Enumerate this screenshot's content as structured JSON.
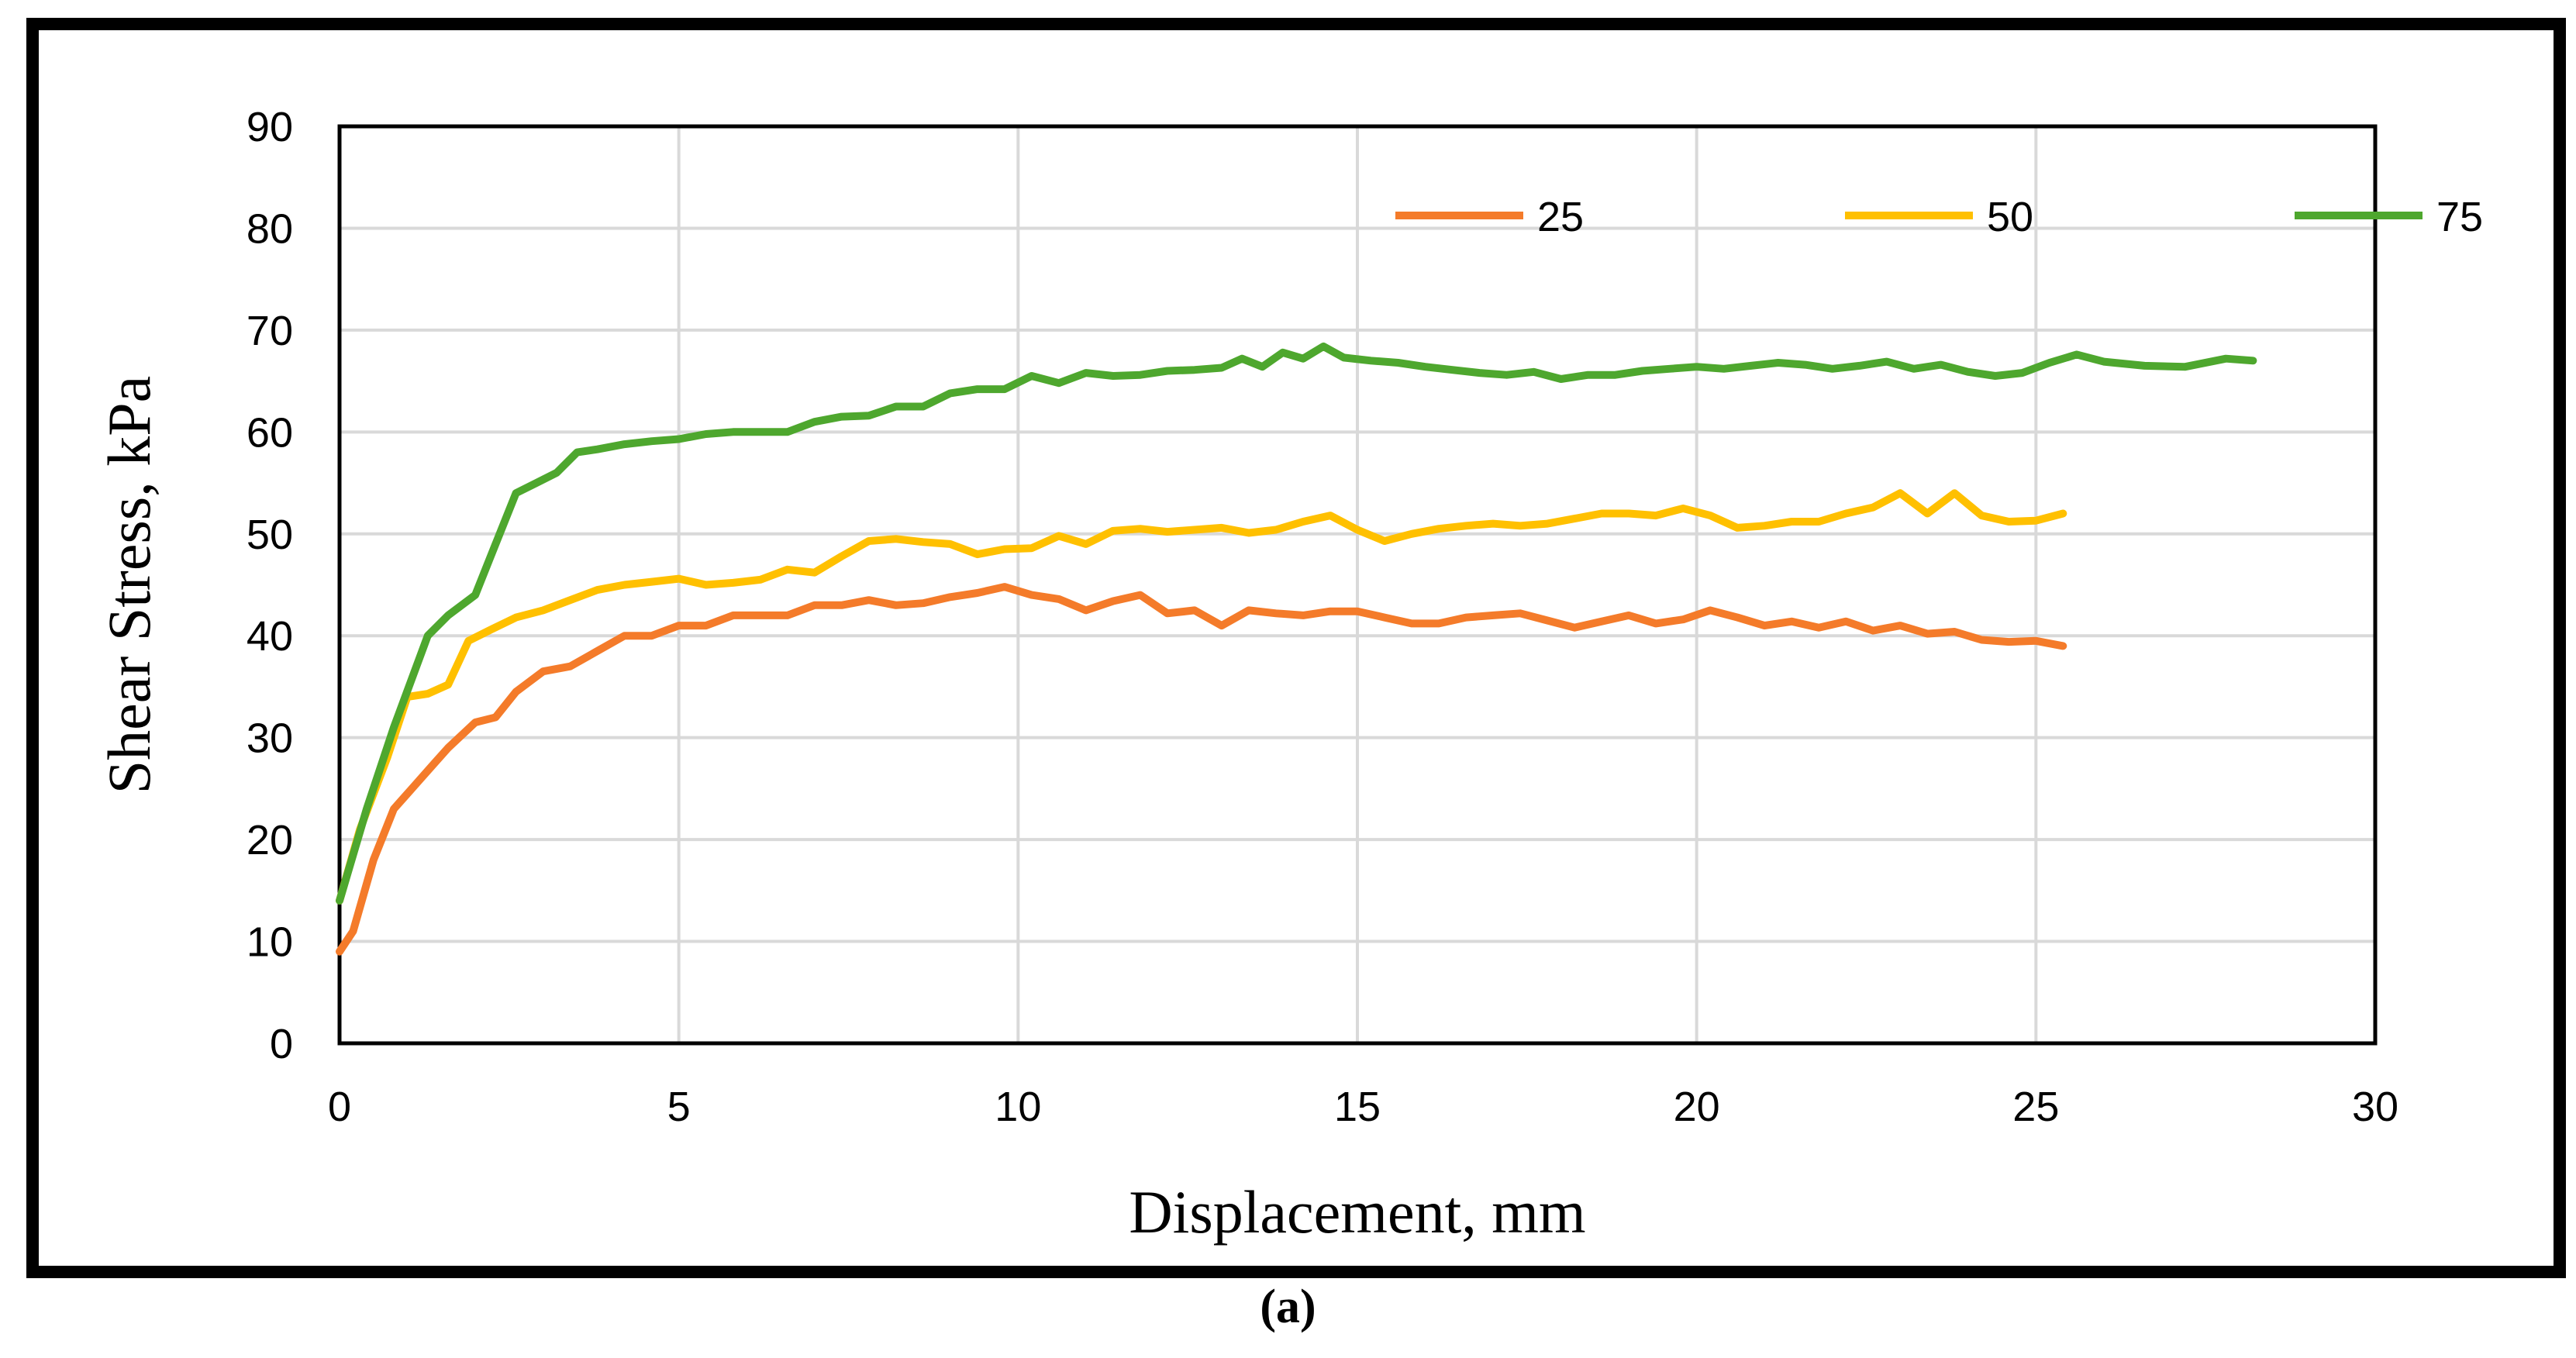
{
  "chart_data": {
    "type": "line",
    "xlabel": "Displacement, mm",
    "ylabel": "Shear Stress, kPa",
    "xlim": [
      0,
      30
    ],
    "ylim": [
      0,
      90
    ],
    "xticks": [
      0,
      5,
      10,
      15,
      20,
      25,
      30
    ],
    "yticks": [
      0,
      10,
      20,
      30,
      40,
      50,
      60,
      70,
      80,
      90
    ],
    "grid": true,
    "legend_position": "top-right",
    "series": [
      {
        "name": "25",
        "color": "#F47B2A",
        "x": [
          0,
          0.2,
          0.5,
          0.8,
          1.0,
          1.4,
          1.6,
          2.0,
          2.3,
          2.6,
          3.0,
          3.4,
          3.8,
          4.2,
          4.6,
          5.0,
          5.4,
          5.8,
          6.2,
          6.6,
          7.0,
          7.4,
          7.8,
          8.2,
          8.6,
          9.0,
          9.4,
          9.8,
          10.2,
          10.6,
          11.0,
          11.4,
          11.8,
          12.2,
          12.6,
          13.0,
          13.4,
          13.8,
          14.2,
          14.6,
          15.0,
          15.4,
          15.8,
          16.2,
          16.6,
          17.0,
          17.4,
          17.8,
          18.2,
          18.6,
          19.0,
          19.4,
          19.8,
          20.2,
          20.6,
          21.0,
          21.4,
          21.8,
          22.2,
          22.6,
          23.0,
          23.4,
          23.8,
          24.2,
          24.6,
          25.0,
          25.4
        ],
        "y": [
          9,
          11,
          18,
          23,
          24.5,
          27.5,
          29,
          31.5,
          32,
          34.5,
          36.5,
          37,
          38.5,
          40,
          40,
          41,
          41,
          42,
          42,
          42,
          43,
          43,
          43.5,
          43,
          43.2,
          43.8,
          44.2,
          44.8,
          44,
          43.6,
          42.5,
          43.4,
          44,
          42.2,
          42.5,
          41,
          42.5,
          42.2,
          42,
          42.4,
          42.4,
          41.8,
          41.2,
          41.2,
          41.8,
          42,
          42.2,
          41.5,
          40.8,
          41.4,
          42,
          41.2,
          41.6,
          42.5,
          41.8,
          41,
          41.4,
          40.8,
          41.4,
          40.5,
          41,
          40.2,
          40.4,
          39.6,
          39.4,
          39.5,
          39
        ],
        "values": [
          9,
          11,
          18,
          23,
          24.5,
          27.5,
          29,
          31.5,
          32,
          34.5,
          36.5,
          37,
          38.5,
          40,
          40,
          41,
          41,
          42,
          42,
          42,
          43,
          43,
          43.5,
          43,
          43.2,
          43.8,
          44.2,
          44.8,
          44,
          43.6,
          42.5,
          43.4,
          44,
          42.2,
          42.5,
          41,
          42.5,
          42.2,
          42,
          42.4,
          42.4,
          41.8,
          41.2,
          41.2,
          41.8,
          42,
          42.2,
          41.5,
          40.8,
          41.4,
          42,
          41.2,
          41.6,
          42.5,
          41.8,
          41,
          41.4,
          40.8,
          41.4,
          40.5,
          41,
          40.2,
          40.4,
          39.6,
          39.4,
          39.5,
          39
        ]
      },
      {
        "name": "50",
        "color": "#FFC000",
        "x": [
          0,
          0.3,
          0.7,
          1.0,
          1.3,
          1.6,
          1.9,
          2.2,
          2.6,
          3.0,
          3.4,
          3.8,
          4.2,
          4.6,
          5.0,
          5.4,
          5.8,
          6.2,
          6.6,
          7.0,
          7.4,
          7.8,
          8.2,
          8.6,
          9.0,
          9.4,
          9.8,
          10.2,
          10.6,
          11.0,
          11.4,
          11.8,
          12.2,
          12.6,
          13.0,
          13.4,
          13.8,
          14.2,
          14.6,
          15.0,
          15.4,
          15.8,
          16.2,
          16.6,
          17.0,
          17.4,
          17.8,
          18.2,
          18.6,
          19.0,
          19.4,
          19.8,
          20.2,
          20.6,
          21.0,
          21.4,
          21.8,
          22.2,
          22.6,
          23.0,
          23.4,
          23.8,
          24.2,
          24.6,
          25.0,
          25.4
        ],
        "y": [
          14,
          21,
          28,
          34,
          34.3,
          35.2,
          39.5,
          40.5,
          41.8,
          42.5,
          43.5,
          44.5,
          45,
          45.3,
          45.6,
          45,
          45.2,
          45.5,
          46.5,
          46.2,
          47.8,
          49.3,
          49.5,
          49.2,
          49,
          48,
          48.5,
          48.6,
          49.8,
          49,
          50.3,
          50.5,
          50.2,
          50.4,
          50.6,
          50.1,
          50.4,
          51.2,
          51.8,
          50.4,
          49.3,
          50,
          50.5,
          50.8,
          51,
          50.8,
          51,
          51.5,
          52,
          52,
          51.8,
          52.5,
          51.8,
          50.6,
          50.8,
          51.2,
          51.2,
          52,
          52.6,
          54,
          52,
          54,
          51.8,
          51.2,
          51.3,
          52
        ]
      },
      {
        "name": "75",
        "color": "#4EA72E",
        "x": [
          0,
          0.4,
          0.8,
          1.3,
          1.6,
          2.0,
          2.3,
          2.6,
          2.9,
          3.2,
          3.5,
          3.8,
          4.2,
          4.6,
          5.0,
          5.4,
          5.8,
          6.2,
          6.6,
          7.0,
          7.4,
          7.8,
          8.2,
          8.6,
          9.0,
          9.4,
          9.8,
          10.2,
          10.6,
          11.0,
          11.4,
          11.8,
          12.2,
          12.6,
          13.0,
          13.3,
          13.6,
          13.9,
          14.2,
          14.5,
          14.8,
          15.2,
          15.6,
          16.0,
          16.4,
          16.8,
          17.2,
          17.6,
          18.0,
          18.4,
          18.8,
          19.2,
          19.6,
          20.0,
          20.4,
          20.8,
          21.2,
          21.6,
          22.0,
          22.4,
          22.8,
          23.2,
          23.6,
          24.0,
          24.4,
          24.8,
          25.2,
          25.6,
          26.0,
          26.6,
          27.2,
          27.8,
          28.2
        ],
        "y": [
          14,
          23,
          31,
          40,
          42,
          44,
          49,
          54,
          55,
          56,
          58,
          58.3,
          58.8,
          59.1,
          59.3,
          59.8,
          60,
          60,
          60,
          61,
          61.5,
          61.6,
          62.5,
          62.5,
          63.8,
          64.2,
          64.2,
          65.5,
          64.8,
          65.8,
          65.5,
          65.6,
          66,
          66.1,
          66.3,
          67.2,
          66.4,
          67.8,
          67.2,
          68.4,
          67.3,
          67,
          66.8,
          66.4,
          66.1,
          65.8,
          65.6,
          65.9,
          65.2,
          65.6,
          65.6,
          66,
          66.2,
          66.4,
          66.2,
          66.5,
          66.8,
          66.6,
          66.2,
          66.5,
          66.9,
          66.2,
          66.6,
          65.9,
          65.5,
          65.8,
          66.8,
          67.6,
          66.9,
          66.5,
          66.4,
          67.2,
          67
        ]
      }
    ]
  },
  "caption": "(a)"
}
